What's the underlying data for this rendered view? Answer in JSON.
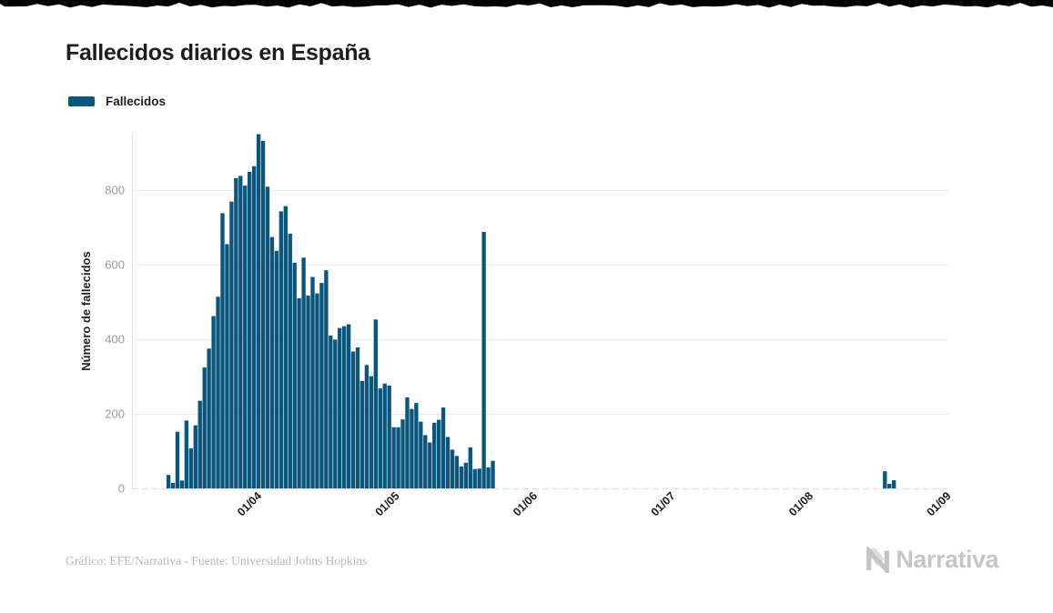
{
  "header": {
    "title": "Fallecidos diarios en España"
  },
  "legend": {
    "items": [
      {
        "label": "Fallecidos",
        "color": "#0a567c"
      }
    ]
  },
  "chart_data": {
    "type": "bar",
    "title": "Fallecidos diarios en España",
    "xlabel": "",
    "ylabel": "Número de fallecidos",
    "ylim": [
      0,
      950
    ],
    "yticks": [
      0,
      200,
      400,
      600,
      800
    ],
    "xticks": [
      "01/04",
      "01/05",
      "01/06",
      "01/07",
      "01/08",
      "01/09"
    ],
    "grid": "horizontal",
    "legend_position": "top-left",
    "series": [
      {
        "name": "Fallecidos",
        "color": "#0a567c",
        "frequency": "daily",
        "start_date": "13/03",
        "end_date": "31/08",
        "values": [
          36,
          15,
          152,
          21,
          182,
          107,
          169,
          235,
          324,
          375,
          462,
          514,
          738,
          655,
          769,
          832,
          838,
          812,
          849,
          864,
          950,
          932,
          809,
          674,
          637,
          743,
          757,
          683,
          605,
          510,
          619,
          517,
          567,
          523,
          551,
          585,
          410,
          399,
          430,
          435,
          440,
          367,
          378,
          288,
          331,
          301,
          453,
          268,
          281,
          276,
          164,
          164,
          185,
          244,
          213,
          229,
          179,
          143,
          123,
          176,
          184,
          217,
          138,
          104,
          87,
          59,
          69,
          110,
          52,
          53,
          688,
          56,
          74,
          0,
          0,
          0,
          0,
          0,
          0,
          0,
          0,
          0,
          0,
          0,
          0,
          0,
          0,
          0,
          0,
          0,
          0,
          0,
          0,
          0,
          0,
          0,
          0,
          0,
          0,
          0,
          0,
          0,
          0,
          0,
          0,
          0,
          0,
          0,
          0,
          0,
          0,
          0,
          0,
          0,
          0,
          0,
          0,
          0,
          0,
          0,
          0,
          0,
          0,
          0,
          0,
          0,
          0,
          0,
          0,
          0,
          0,
          0,
          0,
          0,
          0,
          0,
          0,
          0,
          0,
          0,
          0,
          0,
          0,
          0,
          0,
          0,
          0,
          0,
          0,
          0,
          0,
          0,
          0,
          0,
          0,
          0,
          0,
          0,
          0,
          46,
          12,
          22,
          0,
          0,
          0,
          0,
          0,
          0,
          0,
          0,
          0,
          0
        ]
      }
    ]
  },
  "footer": {
    "credit": "Gráfico: EFE/Narrativa - Fuente: Universidad Johns Hopkins",
    "brand_name": "Narrativa"
  },
  "colors": {
    "bar": "#0a567c",
    "grid": "#ececec",
    "axis_line": "#e2e2e2",
    "zero_dash": "#d8e1e8",
    "ytick_text": "#9b9b9b",
    "xtick_text": "#1b1b1b",
    "title_text": "#1d1d1b",
    "credit_text": "#b9b9b9",
    "brand_text": "#c6c6c6",
    "top_edge": "#000000"
  }
}
